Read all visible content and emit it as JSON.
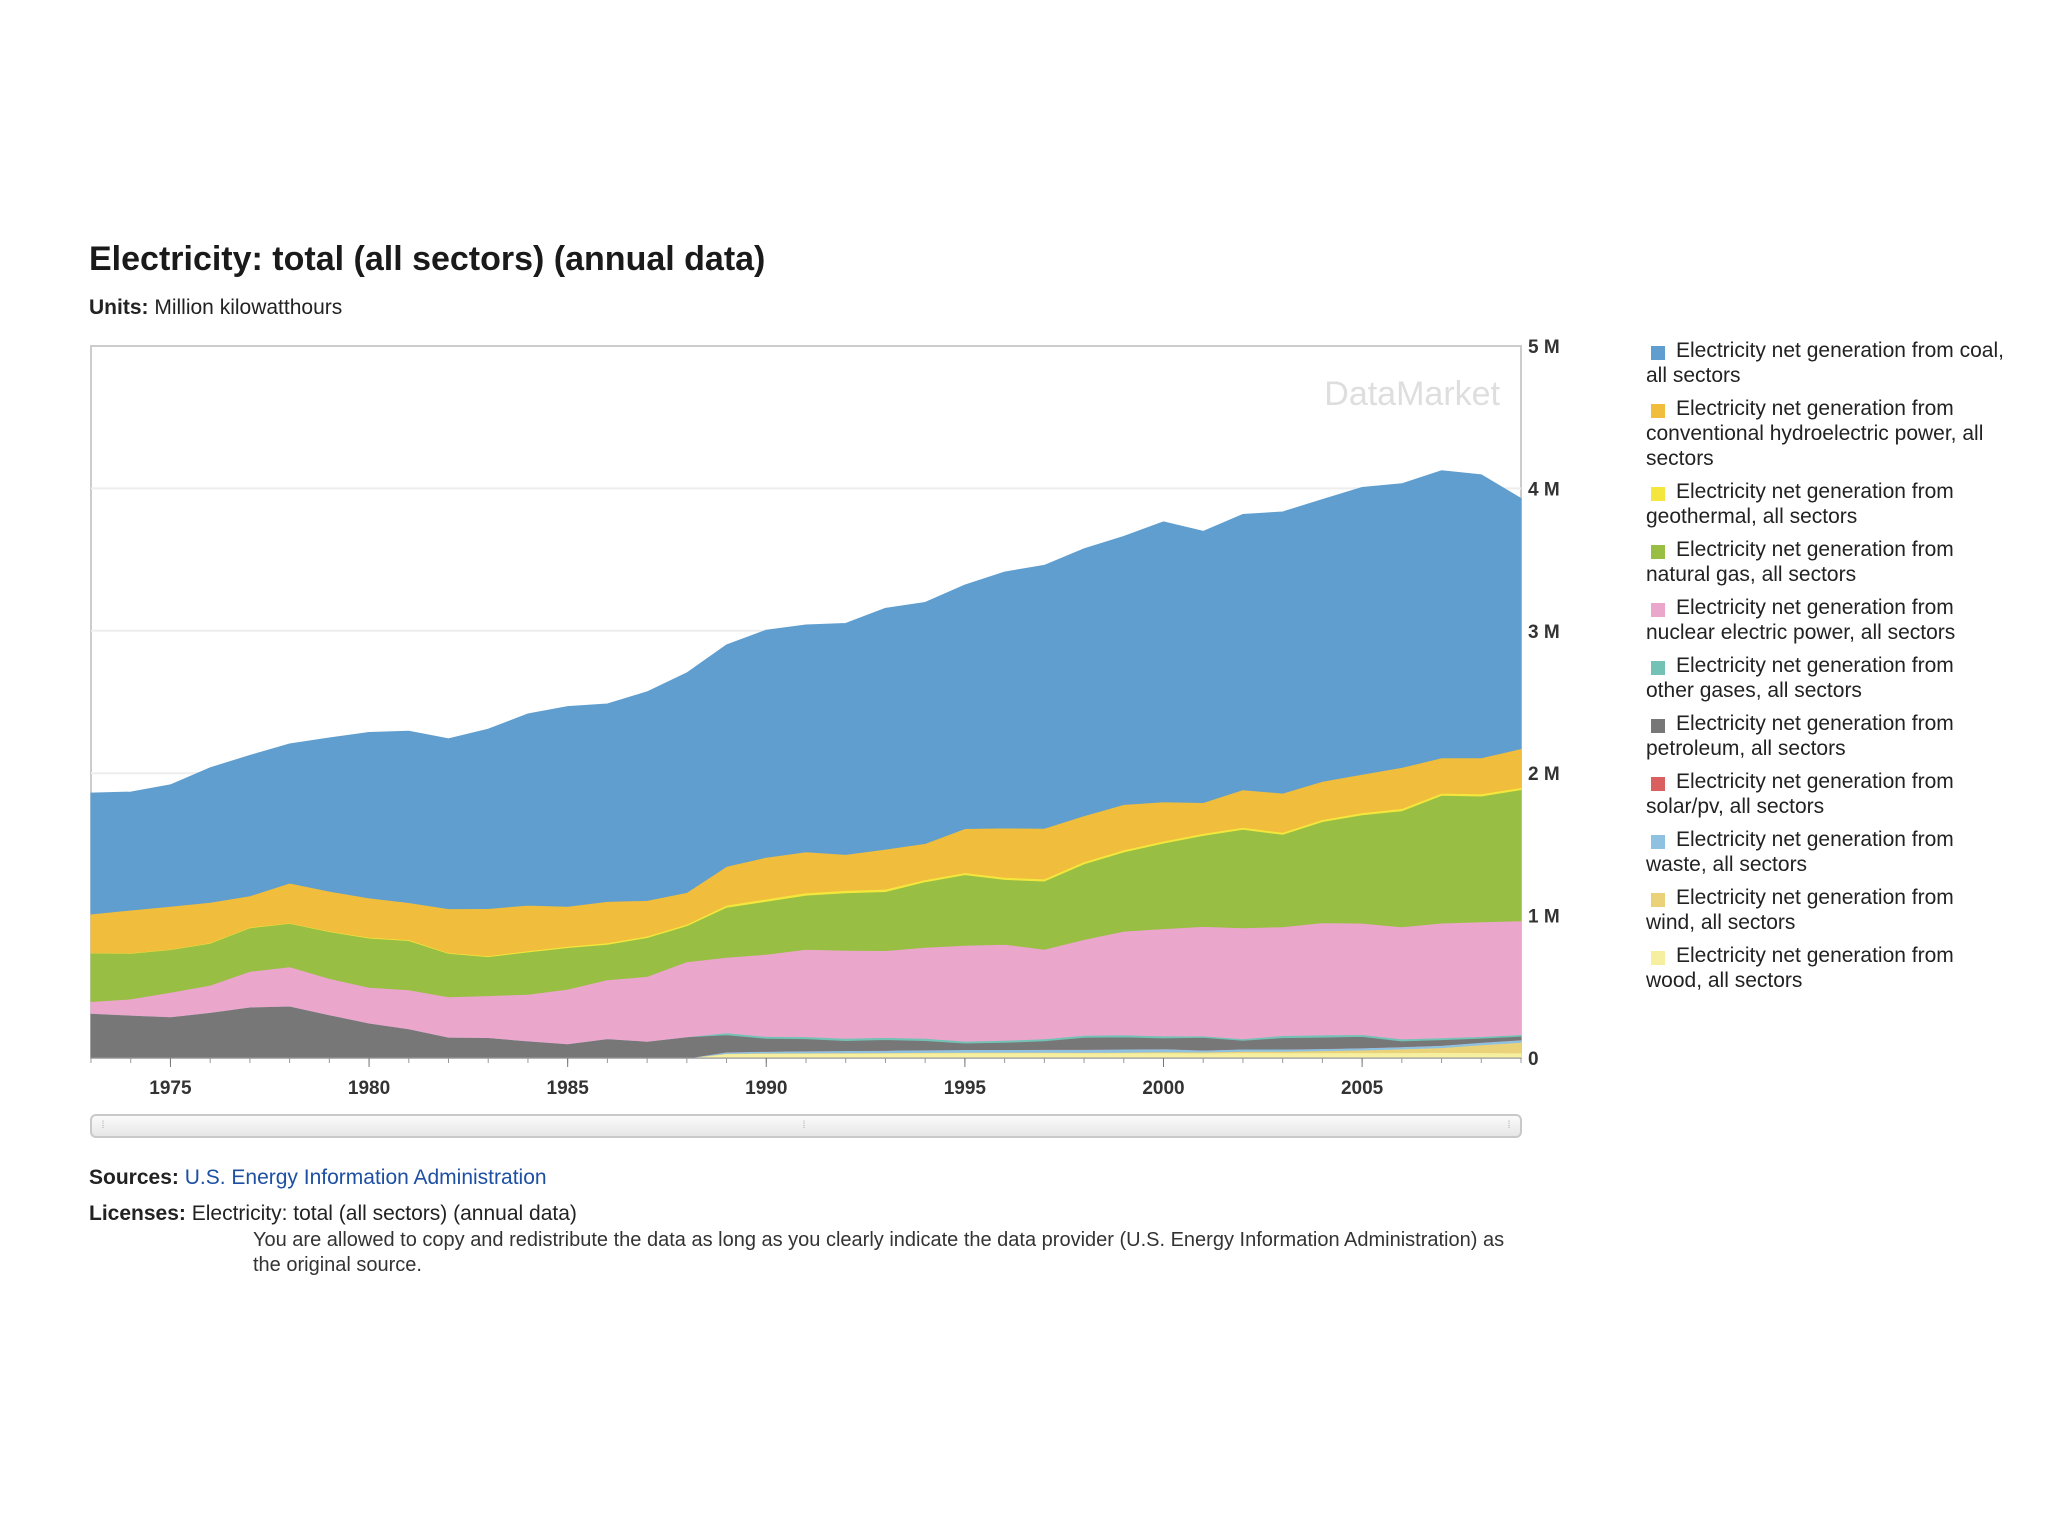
{
  "title": "Electricity: total (all sectors) (annual data)",
  "units_label": "Units:",
  "units_value": "Million kilowatthours",
  "watermark": "DataMarket",
  "sources_label": "Sources:",
  "sources_link": "U.S. Energy Information Administration",
  "licenses_label": "Licenses:",
  "licenses_name": "Electricity: total (all sectors) (annual data)",
  "licenses_text": "You are allowed to copy and redistribute the data as long as you clearly indicate the data provider (U.S. Energy Information Administration) as the original source.",
  "chart_data": {
    "type": "area",
    "stacked": true,
    "title": "Electricity: total (all sectors) (annual data)",
    "xlabel": "",
    "ylabel": "Million kilowatthours",
    "xlim": [
      1973,
      2009
    ],
    "ylim": [
      0,
      5000000
    ],
    "x_ticks": [
      1975,
      1980,
      1985,
      1990,
      1995,
      2000,
      2005
    ],
    "y_ticks": [
      0,
      1000000,
      2000000,
      3000000,
      4000000,
      5000000
    ],
    "y_tick_labels": [
      "0",
      "1 M",
      "2 M",
      "3 M",
      "4 M",
      "5 M"
    ],
    "legend_position": "right",
    "x": [
      1973,
      1974,
      1975,
      1976,
      1977,
      1978,
      1979,
      1980,
      1981,
      1982,
      1983,
      1984,
      1985,
      1986,
      1987,
      1988,
      1989,
      1990,
      1991,
      1992,
      1993,
      1994,
      1995,
      1996,
      1997,
      1998,
      1999,
      2000,
      2001,
      2002,
      2003,
      2004,
      2005,
      2006,
      2007,
      2008,
      2009
    ],
    "series": [
      {
        "name": "Electricity net generation from wood, all sectors",
        "color": "#f6efa0",
        "values": [
          0,
          0,
          0,
          0,
          0,
          0,
          0,
          0,
          0,
          0,
          0,
          0,
          0,
          0,
          0,
          0,
          30000,
          32000,
          33000,
          34000,
          35000,
          36000,
          37000,
          37000,
          37000,
          36000,
          37000,
          37000,
          35000,
          38000,
          37000,
          38000,
          38000,
          38000,
          39000,
          38000,
          36000
        ]
      },
      {
        "name": "Electricity net generation from wind, all sectors",
        "color": "#e9d27a",
        "values": [
          0,
          0,
          0,
          0,
          0,
          0,
          0,
          0,
          0,
          0,
          0,
          0,
          0,
          0,
          0,
          0,
          2000,
          3000,
          3000,
          3000,
          3000,
          3000,
          3000,
          3000,
          3000,
          3000,
          4000,
          6000,
          7000,
          10000,
          11000,
          14000,
          18000,
          26000,
          34000,
          55000,
          74000
        ]
      },
      {
        "name": "Electricity net generation from waste, all sectors",
        "color": "#8fc1e1",
        "values": [
          0,
          0,
          0,
          0,
          0,
          0,
          0,
          0,
          0,
          0,
          0,
          0,
          0,
          0,
          0,
          0,
          11000,
          13000,
          15000,
          16000,
          17000,
          19000,
          20000,
          20000,
          21000,
          22000,
          22000,
          23000,
          14000,
          16000,
          15000,
          15000,
          16000,
          16000,
          16000,
          17000,
          18000
        ]
      },
      {
        "name": "Electricity net generation from solar/pv, all sectors",
        "color": "#d9605f",
        "values": [
          0,
          0,
          0,
          0,
          0,
          0,
          0,
          0,
          0,
          0,
          0,
          0,
          0,
          0,
          0,
          0,
          0,
          0,
          0,
          0,
          0,
          0,
          0,
          0,
          0,
          0,
          0,
          0,
          0,
          0,
          0,
          0,
          0,
          0,
          0,
          0,
          1000
        ]
      },
      {
        "name": "Electricity net generation from petroleum, all sectors",
        "color": "#777777",
        "values": [
          314000,
          301000,
          289000,
          320000,
          358000,
          365000,
          304000,
          246000,
          206000,
          147000,
          144000,
          120000,
          100000,
          136000,
          118000,
          149000,
          120000,
          90000,
          85000,
          70000,
          75000,
          65000,
          45000,
          50000,
          60000,
          85000,
          85000,
          75000,
          90000,
          60000,
          80000,
          80000,
          80000,
          40000,
          40000,
          30000,
          25000
        ]
      },
      {
        "name": "Electricity net generation from other gases, all sectors",
        "color": "#74c2b5",
        "values": [
          0,
          0,
          0,
          0,
          0,
          0,
          0,
          0,
          0,
          0,
          0,
          0,
          0,
          0,
          0,
          0,
          15000,
          14000,
          14000,
          15000,
          15000,
          15000,
          14000,
          14000,
          14000,
          14000,
          15000,
          14000,
          9000,
          11000,
          15000,
          15000,
          13000,
          14000,
          13000,
          11000,
          11000
        ]
      },
      {
        "name": "Electricity net generation from nuclear electric power, all sectors",
        "color": "#eba6cc",
        "values": [
          83000,
          114000,
          173000,
          191000,
          251000,
          276000,
          255000,
          251000,
          273000,
          283000,
          294000,
          328000,
          384000,
          414000,
          455000,
          527000,
          529000,
          577000,
          613000,
          619000,
          610000,
          640000,
          673000,
          675000,
          629000,
          673000,
          728000,
          754000,
          769000,
          780000,
          764000,
          789000,
          782000,
          787000,
          806000,
          806000,
          799000
        ]
      },
      {
        "name": "Electricity net generation from natural gas, all sectors",
        "color": "#98bf43",
        "values": [
          341000,
          320000,
          300000,
          295000,
          306000,
          305000,
          329000,
          346000,
          346000,
          305000,
          274000,
          297000,
          292000,
          249000,
          273000,
          253000,
          352000,
          372000,
          381000,
          404000,
          414000,
          460000,
          496000,
          455000,
          479000,
          531000,
          556000,
          601000,
          639000,
          691000,
          649000,
          710000,
          761000,
          816000,
          897000,
          883000,
          921000
        ]
      },
      {
        "name": "Electricity net generation from geothermal, all sectors",
        "color": "#f4e63c",
        "values": [
          2000,
          3000,
          3000,
          4000,
          4000,
          3000,
          4000,
          5000,
          6000,
          5000,
          6000,
          8000,
          9000,
          10000,
          11000,
          11000,
          15000,
          16000,
          16000,
          16000,
          17000,
          15000,
          14000,
          15000,
          15000,
          15000,
          15000,
          14000,
          14000,
          14000,
          14000,
          14000,
          15000,
          15000,
          15000,
          15000,
          15000
        ]
      },
      {
        "name": "Electricity net generation from conventional hydroelectric power, all sectors",
        "color": "#f0bd3c",
        "values": [
          272000,
          301000,
          300000,
          284000,
          220000,
          280000,
          280000,
          276000,
          261000,
          309000,
          332000,
          321000,
          281000,
          291000,
          250000,
          223000,
          272000,
          293000,
          289000,
          253000,
          281000,
          254000,
          310000,
          347000,
          356000,
          323000,
          319000,
          275000,
          217000,
          264000,
          275000,
          268000,
          270000,
          289000,
          248000,
          254000,
          273000
        ]
      },
      {
        "name": "Electricity net generation from coal, all sectors",
        "color": "#5f9ecf",
        "values": [
          848000,
          828000,
          853000,
          944000,
          985000,
          976000,
          1075000,
          1162000,
          1203000,
          1192000,
          1259000,
          1342000,
          1402000,
          1386000,
          1464000,
          1541000,
          1554000,
          1594000,
          1592000,
          1621000,
          1690000,
          1692000,
          1709000,
          1796000,
          1845000,
          1874000,
          1881000,
          1966000,
          1904000,
          1933000,
          1974000,
          1978000,
          2013000,
          1991000,
          2016000,
          1986000,
          1756000
        ]
      }
    ]
  }
}
